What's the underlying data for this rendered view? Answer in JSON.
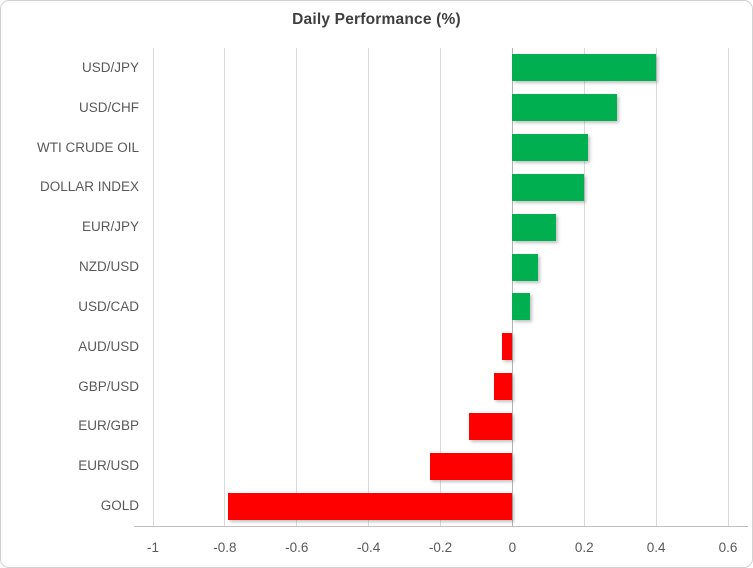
{
  "title": "Daily Performance (%)",
  "colors": {
    "positive": "#00b050",
    "negative": "#ff0000",
    "gridline": "#d9d9d9",
    "zero_line": "#b3b3b3",
    "axis_line": "#bfbfbf",
    "axis_text": "#595959",
    "title_text": "#3f3f3f",
    "border": "#d2d2d2",
    "background": "#ffffff"
  },
  "chart_data": {
    "type": "bar",
    "orientation": "horizontal",
    "title": "Daily Performance (%)",
    "categories": [
      "USD/JPY",
      "USD/CHF",
      "WTI CRUDE OIL",
      "DOLLAR INDEX",
      "EUR/JPY",
      "NZD/USD",
      "USD/CAD",
      "AUD/USD",
      "GBP/USD",
      "EUR/GBP",
      "EUR/USD",
      "GOLD"
    ],
    "values": [
      0.4,
      0.29,
      0.21,
      0.2,
      0.12,
      0.07,
      0.05,
      -0.03,
      -0.05,
      -0.12,
      -0.23,
      -0.79
    ],
    "xlabel": "",
    "ylabel": "",
    "xlim": [
      -1,
      0.6
    ],
    "xticks": [
      -1,
      -0.8,
      -0.6,
      -0.4,
      -0.2,
      0,
      0.2,
      0.4,
      0.6
    ],
    "xtick_labels": [
      "-1",
      "-0.8",
      "-0.6",
      "-0.4",
      "-0.2",
      "0",
      "0.2",
      "0.4",
      "0.6"
    ],
    "grid": true,
    "legend": false
  }
}
